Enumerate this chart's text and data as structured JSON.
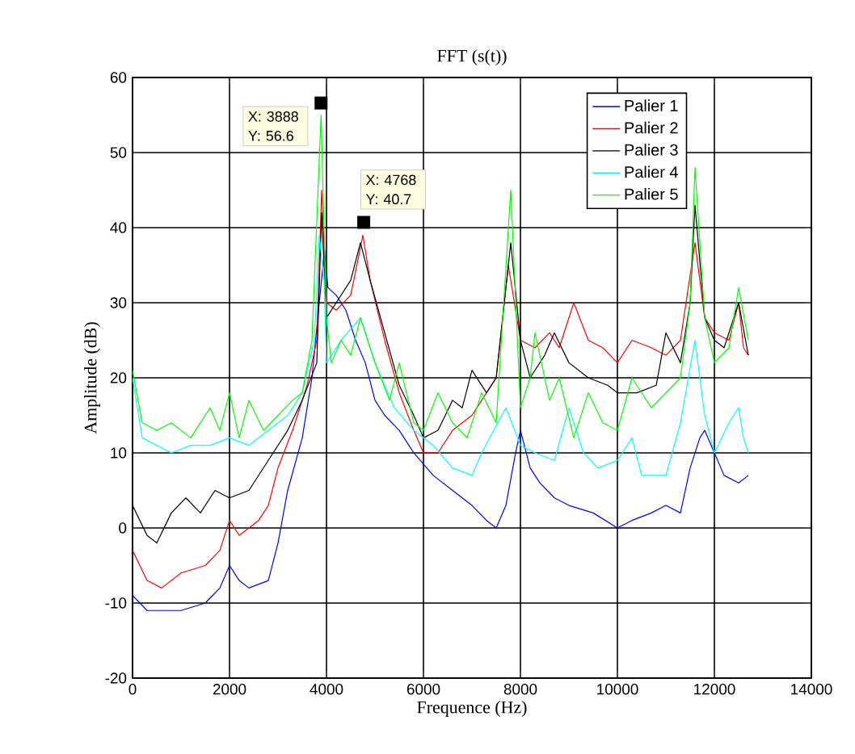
{
  "chart_data": {
    "type": "line",
    "title": "FFT (s(t))",
    "xlabel": "Frequence (Hz)",
    "ylabel": "Amplitude (dB)",
    "xlim": [
      0,
      14000
    ],
    "ylim": [
      -20,
      60
    ],
    "xticks": [
      0,
      2000,
      4000,
      6000,
      8000,
      10000,
      12000,
      14000
    ],
    "yticks": [
      -20,
      -10,
      0,
      10,
      20,
      30,
      40,
      50,
      60
    ],
    "grid": true,
    "legend": "top right",
    "line_style": "solid",
    "marker": "none",
    "annotations": [
      {
        "text": "X: 3888 Y: 56.6",
        "x": 3888,
        "y": 56.6
      },
      {
        "text": "X: 4768 Y: 40.7",
        "x": 4768,
        "y": 40.7
      }
    ],
    "series": [
      {
        "name": "Palier 1",
        "color": "#0000ff",
        "x": [
          0,
          300,
          1000,
          1500,
          1800,
          2000,
          2200,
          2400,
          2800,
          3000,
          3200,
          3500,
          3700,
          3850,
          3960,
          4030,
          4200,
          4400,
          4600,
          4800,
          5000,
          5200,
          5500,
          5800,
          6200,
          6600,
          7000,
          7300,
          7500,
          7700,
          7900,
          8000,
          8200,
          8400,
          8700,
          9000,
          9500,
          10000,
          10300,
          10700,
          11000,
          11300,
          11500,
          11700,
          11800,
          12000,
          12200,
          12500,
          12700
        ],
        "values": [
          -9,
          -11,
          -11,
          -10,
          -8,
          -5,
          -7,
          -8,
          -7,
          -2,
          5,
          12,
          20,
          30,
          37,
          32,
          31,
          29,
          25,
          22,
          17,
          15,
          13,
          10,
          7,
          5,
          3,
          1,
          0,
          3,
          10,
          13,
          8,
          6,
          4,
          3,
          2,
          0,
          1,
          2,
          3,
          2,
          8,
          12,
          13,
          10,
          7,
          6,
          7
        ]
      },
      {
        "name": "Palier 2",
        "color": "#ff0000",
        "x": [
          0,
          300,
          600,
          1000,
          1500,
          1800,
          2000,
          2200,
          2600,
          2800,
          3000,
          3300,
          3600,
          3800,
          3900,
          4000,
          4200,
          4500,
          4750,
          4900,
          5200,
          5500,
          5800,
          6000,
          6300,
          6600,
          7000,
          7300,
          7500,
          7750,
          8000,
          8300,
          8600,
          8800,
          9100,
          9400,
          9700,
          10000,
          10300,
          10700,
          11000,
          11300,
          11600,
          11800,
          12000,
          12300,
          12500,
          12600,
          12700
        ],
        "values": [
          -3,
          -7,
          -8,
          -6,
          -5,
          -3,
          1,
          -1,
          1,
          3,
          8,
          13,
          19,
          25,
          45,
          30,
          29,
          31,
          39,
          33,
          25,
          18,
          13,
          10,
          10,
          13,
          15,
          18,
          20,
          35,
          25,
          24,
          26,
          24,
          30,
          25,
          24,
          22,
          25,
          24,
          23,
          25,
          38,
          28,
          26,
          25,
          30,
          24,
          23
        ]
      },
      {
        "name": "Palier 3",
        "color": "#000000",
        "x": [
          0,
          300,
          500,
          800,
          1100,
          1400,
          1700,
          2000,
          2400,
          2800,
          3200,
          3500,
          3800,
          3900,
          4000,
          4200,
          4500,
          4700,
          4900,
          5200,
          5500,
          5800,
          6000,
          6300,
          6600,
          6800,
          7000,
          7300,
          7500,
          7800,
          8000,
          8200,
          8500,
          8700,
          9000,
          9400,
          9800,
          10000,
          10400,
          10800,
          11000,
          11300,
          11500,
          11600,
          11800,
          12000,
          12200,
          12500,
          12700
        ],
        "values": [
          3,
          -1,
          -2,
          2,
          4,
          2,
          5,
          4,
          5,
          9,
          13,
          17,
          22,
          42,
          28,
          30,
          33,
          38,
          33,
          26,
          19,
          15,
          12,
          13,
          17,
          16,
          21,
          18,
          20,
          38,
          25,
          20,
          23,
          26,
          22,
          20,
          19,
          18,
          18,
          19,
          26,
          22,
          30,
          43,
          28,
          25,
          24,
          30,
          23
        ]
      },
      {
        "name": "Palier 4",
        "color": "#00ffff",
        "x": [
          0,
          200,
          500,
          800,
          1200,
          1600,
          2000,
          2400,
          2800,
          3200,
          3500,
          3750,
          3850,
          3950,
          4000,
          4300,
          4700,
          5000,
          5400,
          5800,
          6200,
          6600,
          7000,
          7200,
          7700,
          8000,
          8300,
          8700,
          9000,
          9300,
          9600,
          10000,
          10300,
          10500,
          11000,
          11300,
          11600,
          11800,
          12000,
          12300,
          12500,
          12600,
          12700
        ],
        "values": [
          20,
          12,
          11,
          10,
          11,
          11,
          12,
          11,
          13,
          15,
          18,
          25,
          39,
          33,
          22,
          25,
          28,
          22,
          16,
          13,
          11,
          8,
          7,
          10,
          16,
          11,
          10,
          9,
          16,
          10,
          8,
          9,
          12,
          7,
          7,
          14,
          25,
          15,
          10,
          14,
          16,
          12,
          10
        ]
      },
      {
        "name": "Palier 5",
        "color": "#00ff00",
        "x": [
          0,
          200,
          500,
          800,
          1200,
          1600,
          1800,
          2000,
          2200,
          2400,
          2700,
          3000,
          3300,
          3500,
          3700,
          3888,
          4000,
          4100,
          4300,
          4500,
          4700,
          5000,
          5300,
          5500,
          5800,
          6000,
          6300,
          6600,
          6900,
          7200,
          7500,
          7800,
          8000,
          8200,
          8300,
          8600,
          8800,
          9100,
          9400,
          9700,
          10000,
          10300,
          10700,
          11000,
          11300,
          11500,
          11600,
          11800,
          12000,
          12300,
          12500,
          12700
        ],
        "values": [
          21,
          14,
          13,
          14,
          12,
          16,
          13,
          18,
          12,
          17,
          13,
          15,
          17,
          18,
          25,
          55,
          28,
          22,
          25,
          23,
          28,
          22,
          17,
          22,
          14,
          13,
          18,
          14,
          12,
          18,
          14,
          45,
          16,
          20,
          26,
          17,
          20,
          12,
          18,
          14,
          13,
          20,
          16,
          18,
          20,
          30,
          48,
          28,
          22,
          24,
          32,
          25
        ]
      }
    ]
  }
}
